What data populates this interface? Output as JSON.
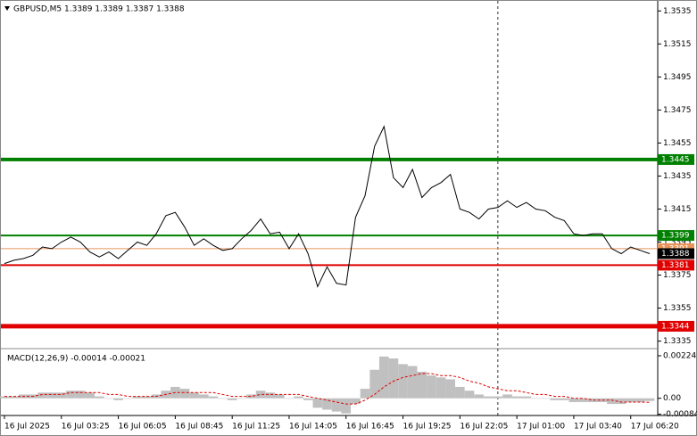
{
  "chart_data": [
    {
      "type": "line",
      "title": "GBPUSD,M5  1.3389 1.3389 1.3387 1.3388",
      "color": "#000000",
      "values": [
        1.3382,
        1.3384,
        1.3385,
        1.3387,
        1.3392,
        1.3391,
        1.3395,
        1.3398,
        1.3395,
        1.3389,
        1.3386,
        1.3389,
        1.3385,
        1.339,
        1.3395,
        1.3393,
        1.34,
        1.3411,
        1.3413,
        1.3404,
        1.3393,
        1.3397,
        1.3393,
        1.339,
        1.3391,
        1.3397,
        1.3402,
        1.3409,
        1.34,
        1.3401,
        1.3391,
        1.34,
        1.3388,
        1.3368,
        1.338,
        1.337,
        1.3369,
        1.341,
        1.3423,
        1.3453,
        1.3465,
        1.3434,
        1.3428,
        1.3439,
        1.3422,
        1.3428,
        1.3431,
        1.3436,
        1.3415,
        1.3413,
        1.3409,
        1.3415,
        1.3416,
        1.342,
        1.3416,
        1.3419,
        1.3415,
        1.3414,
        1.341,
        1.3408,
        1.34,
        1.3399,
        1.34,
        1.34,
        1.3391,
        1.3388,
        1.3392,
        1.339,
        1.3388
      ],
      "ylim": [
        1.3331,
        1.354
      ],
      "yticks": [
        1.3535,
        1.3515,
        1.3495,
        1.3475,
        1.3455,
        1.3435,
        1.3415,
        1.3395,
        1.3375,
        1.3355,
        1.3335
      ],
      "xticks": [
        {
          "value": 0,
          "label": "16 Jul 2025"
        },
        {
          "value": 6,
          "label": "16 Jul 03:25"
        },
        {
          "value": 12,
          "label": "16 Jul 06:05"
        },
        {
          "value": 18,
          "label": "16 Jul 08:45"
        },
        {
          "value": 24,
          "label": "16 Jul 11:25"
        },
        {
          "value": 30,
          "label": "16 Jul 14:05"
        },
        {
          "value": 36,
          "label": "16 Jul 16:45"
        },
        {
          "value": 42,
          "label": "16 Jul 19:25"
        },
        {
          "value": 48,
          "label": "16 Jul 22:05"
        },
        {
          "value": 54,
          "label": "17 Jul 01:00"
        },
        {
          "value": 60,
          "label": "17 Jul 03:40"
        },
        {
          "value": 66,
          "label": "17 Jul 06:20"
        }
      ],
      "levels": [
        {
          "value": 1.3445,
          "color": "#008000",
          "width": 4
        },
        {
          "value": 1.3399,
          "color": "#008000",
          "width": 2
        },
        {
          "value": 1.3391,
          "color": "#e8945a",
          "width": 1
        },
        {
          "value": 1.3381,
          "color": "#e00000",
          "width": 2
        },
        {
          "value": 1.3344,
          "color": "#e00000",
          "width": 5
        }
      ],
      "current": {
        "value": 1.3388,
        "color": "#000000"
      },
      "vline": 52,
      "grid": false
    },
    {
      "type": "bar",
      "title": "MACD(12,26,9) -0.00014 -0.00021",
      "color": "#c0c0c0",
      "signal_color": "#e00000",
      "values": [
        0.0001,
        0.0001,
        0.0002,
        0.0002,
        0.0003,
        0.0003,
        0.0003,
        0.0004,
        0.0004,
        0.0003,
        0.0001,
        0.0,
        -0.0001,
        0.0,
        0.0001,
        0.0001,
        0.0002,
        0.0004,
        0.0006,
        0.0005,
        0.0003,
        0.0002,
        0.0001,
        0.0,
        -0.0001,
        0.0,
        0.0002,
        0.0004,
        0.0003,
        0.0002,
        0.0,
        0.0001,
        -0.0001,
        -0.0005,
        -0.0006,
        -0.0007,
        -0.0008,
        -0.0003,
        0.0005,
        0.0015,
        0.0022,
        0.0021,
        0.0018,
        0.0017,
        0.0014,
        0.0012,
        0.0011,
        0.001,
        0.0006,
        0.0004,
        0.0002,
        0.0001,
        0.0001,
        0.0002,
        0.0001,
        0.0001,
        0.0,
        0.0,
        -0.0001,
        -0.0001,
        -0.0002,
        -0.0002,
        -0.0002,
        -0.0002,
        -0.0003,
        -0.0003,
        -0.0002,
        -0.0002,
        -0.00014
      ],
      "signal": [
        0.0001,
        0.0001,
        0.0001,
        0.0001,
        0.0002,
        0.0002,
        0.0002,
        0.0003,
        0.0003,
        0.0003,
        0.0003,
        0.0002,
        0.0002,
        0.0001,
        0.0001,
        0.0001,
        0.0001,
        0.0002,
        0.0003,
        0.0003,
        0.0003,
        0.0003,
        0.0003,
        0.0002,
        0.0001,
        0.0001,
        0.0001,
        0.0002,
        0.0002,
        0.0002,
        0.0002,
        0.0002,
        0.0001,
        0.0,
        -0.0001,
        -0.0002,
        -0.0003,
        -0.0003,
        -0.0001,
        0.0002,
        0.0006,
        0.0009,
        0.0011,
        0.0012,
        0.0013,
        0.0013,
        0.0012,
        0.0012,
        0.0011,
        0.0009,
        0.0008,
        0.0006,
        0.0005,
        0.0004,
        0.0004,
        0.0003,
        0.0002,
        0.0002,
        0.0001,
        0.0001,
        0.0,
        0.0,
        -0.0001,
        -0.0001,
        -0.0001,
        -0.0002,
        -0.0002,
        -0.0002,
        -0.00021
      ],
      "y2lim": [
        -0.00086,
        0.00257
      ],
      "y2ticks": [
        0.00224,
        {
          "value": 0,
          "label": "0.00"
        },
        -0.00084
      ]
    }
  ]
}
